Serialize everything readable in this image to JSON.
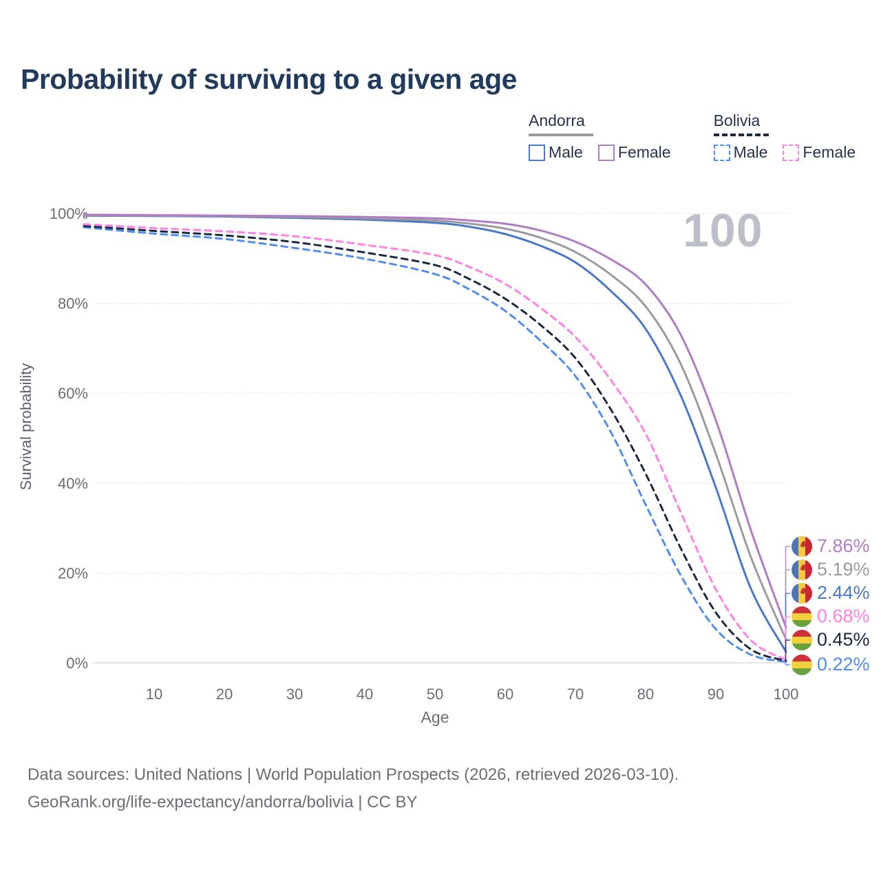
{
  "title": "Probability of surviving to a given age",
  "watermark": "100",
  "legend": {
    "groups": [
      {
        "country": "Andorra",
        "items": [
          {
            "label": "Male"
          },
          {
            "label": "Female"
          }
        ]
      },
      {
        "country": "Bolivia",
        "items": [
          {
            "label": "Male"
          },
          {
            "label": "Female"
          }
        ]
      }
    ]
  },
  "colors": {
    "andorra_male": "#4a78c8",
    "andorra_female": "#b07cc4",
    "andorra_both": "#9b9b9f",
    "bolivia_male": "#4f8df2",
    "bolivia_female": "#ff80e6",
    "bolivia_both": "#1b2a40",
    "title_text": "#223a5c",
    "axis_text": "#6c6c74",
    "grid": "#e7e7ea",
    "zero_line": "#dadade"
  },
  "chart_data": {
    "type": "line",
    "title": "Probability of surviving to a given age",
    "xlabel": "Age",
    "ylabel": "Survival probability",
    "xlim": [
      0,
      100
    ],
    "ylim": [
      0,
      100
    ],
    "x_ticks": [
      10,
      20,
      30,
      40,
      50,
      60,
      70,
      80,
      90,
      100
    ],
    "y_ticks": [
      "0%",
      "20%",
      "40%",
      "60%",
      "80%",
      "100%"
    ],
    "grid": true,
    "legend_position": "top-right",
    "x": [
      0,
      10,
      20,
      30,
      40,
      50,
      55,
      60,
      65,
      70,
      75,
      80,
      85,
      90,
      95,
      100
    ],
    "series": [
      {
        "name": "Andorra Female",
        "country": "Andorra",
        "sex": "Female",
        "color": "#b07cc4",
        "dash": "solid",
        "flag": "andorra",
        "end_label": "7.86%",
        "end_value": 7.86,
        "values": [
          99.7,
          99.6,
          99.5,
          99.4,
          99.2,
          98.9,
          98.4,
          97.7,
          96.2,
          93.7,
          89.8,
          84.2,
          73.0,
          54.0,
          29.5,
          7.86
        ]
      },
      {
        "name": "Andorra (both sexes)",
        "country": "Andorra",
        "sex": "Both",
        "color": "#9b9b9f",
        "dash": "solid",
        "flag": "andorra",
        "end_label": "5.19%",
        "end_value": 5.19,
        "values": [
          99.6,
          99.5,
          99.4,
          99.2,
          98.9,
          98.4,
          97.7,
          96.6,
          94.6,
          91.4,
          86.4,
          79.3,
          66.5,
          46.5,
          23.5,
          5.19
        ]
      },
      {
        "name": "Andorra Male",
        "country": "Andorra",
        "sex": "Male",
        "color": "#4a78c8",
        "dash": "solid",
        "flag": "andorra",
        "end_label": "2.44%",
        "end_value": 2.44,
        "values": [
          99.5,
          99.4,
          99.3,
          99.0,
          98.6,
          97.9,
          97.0,
          95.4,
          92.8,
          89.1,
          82.8,
          74.3,
          59.5,
          39.0,
          16.5,
          2.44
        ]
      },
      {
        "name": "Bolivia Female",
        "country": "Bolivia",
        "sex": "Female",
        "color": "#ff80e6",
        "dash": "dashed",
        "flag": "bolivia",
        "end_label": "0.68%",
        "end_value": 0.68,
        "values": [
          97.6,
          96.7,
          96.0,
          94.9,
          93.0,
          90.7,
          88.0,
          84.3,
          79.0,
          72.5,
          63.0,
          51.0,
          33.5,
          16.4,
          5.0,
          0.68
        ]
      },
      {
        "name": "Bolivia (both sexes)",
        "country": "Bolivia",
        "sex": "Both",
        "color": "#1b2a40",
        "dash": "dashed",
        "flag": "bolivia",
        "end_label": "0.45%",
        "end_value": 0.45,
        "values": [
          97.2,
          96.1,
          95.1,
          93.6,
          91.3,
          88.5,
          85.3,
          81.0,
          75.2,
          67.8,
          56.5,
          42.1,
          25.5,
          11.2,
          3.0,
          0.45
        ]
      },
      {
        "name": "Bolivia Male",
        "country": "Bolivia",
        "sex": "Male",
        "color": "#4f8df2",
        "dash": "dashed",
        "flag": "bolivia",
        "end_label": "0.22%",
        "end_value": 0.22,
        "values": [
          96.9,
          95.5,
          94.3,
          92.3,
          89.9,
          86.5,
          83.0,
          78.3,
          71.7,
          63.8,
          51.5,
          35.2,
          19.5,
          7.5,
          1.8,
          0.22
        ]
      }
    ]
  },
  "footer": {
    "line1": "Data sources: United Nations | World Population Prospects (2026, retrieved 2026-03-10).",
    "line2": "GeoRank.org/life-expectancy/andorra/bolivia | CC BY"
  }
}
